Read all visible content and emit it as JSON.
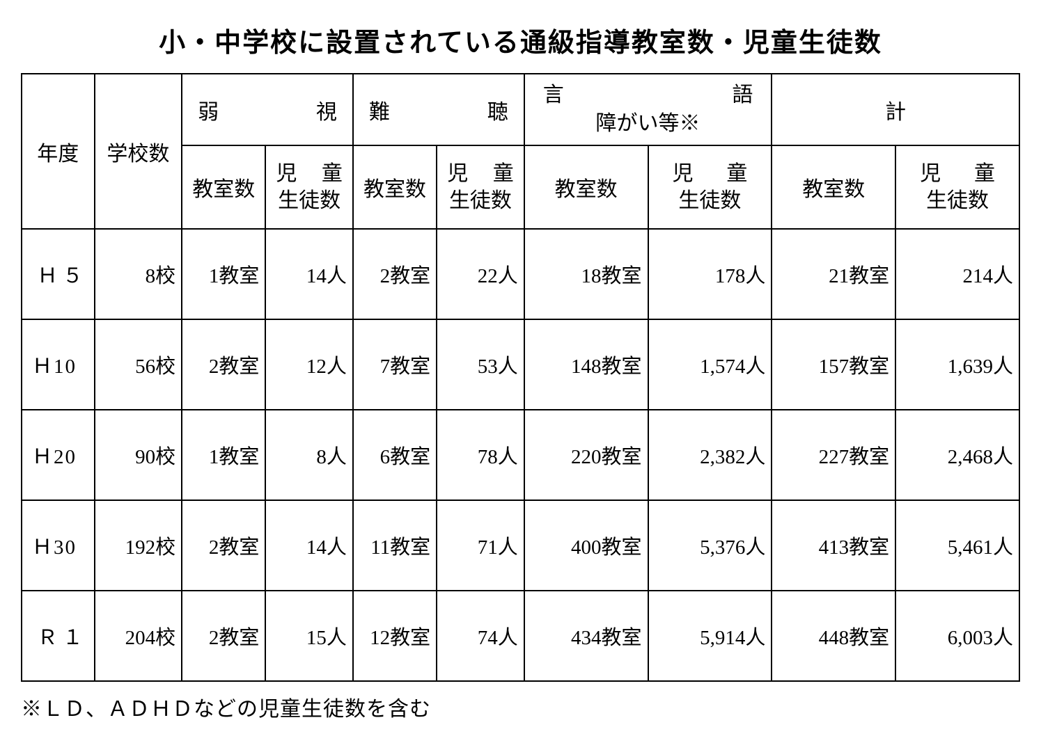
{
  "title": "小・中学校に設置されている通級指導教室数・児童生徒数",
  "headers": {
    "year": "年度",
    "schools": "学校数",
    "group1": "弱視",
    "group2": "難聴",
    "group3_line1_a": "言",
    "group3_line1_b": "語",
    "group3_line2": "障がい等※",
    "group4": "計",
    "classrooms": "教室数",
    "students_l1_a": "児",
    "students_l1_b": "童",
    "students_l2": "生徒数"
  },
  "rows": [
    {
      "year": "Ｈ ５",
      "schools": "8校",
      "c1_room": "1教室",
      "c1_stu": "14人",
      "c2_room": "2教室",
      "c2_stu": "22人",
      "c3_room": "18教室",
      "c3_stu": "178人",
      "c4_room": "21教室",
      "c4_stu": "214人"
    },
    {
      "year": "Ｈ10",
      "schools": "56校",
      "c1_room": "2教室",
      "c1_stu": "12人",
      "c2_room": "7教室",
      "c2_stu": "53人",
      "c3_room": "148教室",
      "c3_stu": "1,574人",
      "c4_room": "157教室",
      "c4_stu": "1,639人"
    },
    {
      "year": "Ｈ20",
      "schools": "90校",
      "c1_room": "1教室",
      "c1_stu": "8人",
      "c2_room": "6教室",
      "c2_stu": "78人",
      "c3_room": "220教室",
      "c3_stu": "2,382人",
      "c4_room": "227教室",
      "c4_stu": "2,468人"
    },
    {
      "year": "Ｈ30",
      "schools": "192校",
      "c1_room": "2教室",
      "c1_stu": "14人",
      "c2_room": "11教室",
      "c2_stu": "71人",
      "c3_room": "400教室",
      "c3_stu": "5,376人",
      "c4_room": "413教室",
      "c4_stu": "5,461人"
    },
    {
      "year": "Ｒ １",
      "schools": "204校",
      "c1_room": "2教室",
      "c1_stu": "15人",
      "c2_room": "12教室",
      "c2_stu": "74人",
      "c3_room": "434教室",
      "c3_stu": "5,914人",
      "c4_room": "448教室",
      "c4_stu": "6,003人"
    }
  ],
  "footnote": "※ＬＤ、ＡＤＨＤなどの児童生徒数を含む"
}
